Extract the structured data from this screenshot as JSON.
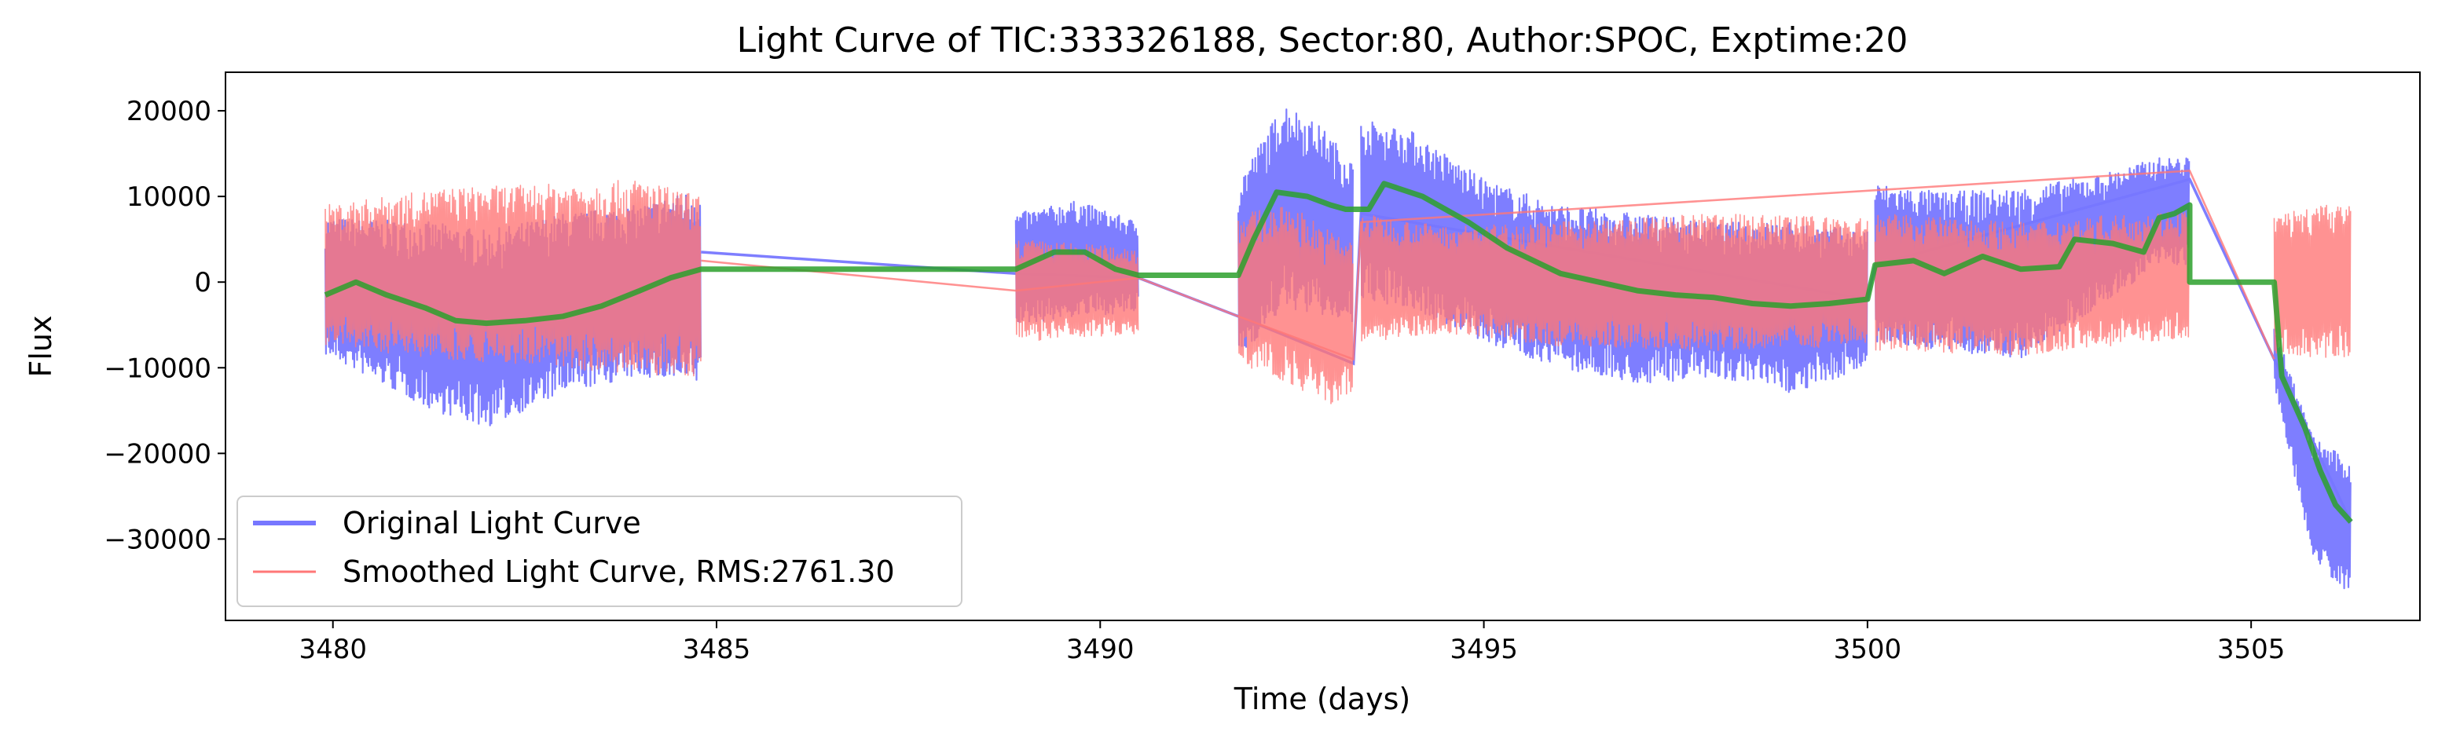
{
  "chart_data": {
    "type": "line",
    "title": "Light Curve of TIC:333326188, Sector:80, Author:SPOC, Exptime:20",
    "xlabel": "Time (days)",
    "ylabel": "Flux",
    "xlim": [
      3478.6,
      3507.2
    ],
    "ylim": [
      -39500,
      24500
    ],
    "xticks": [
      3480,
      3485,
      3490,
      3495,
      3500,
      3505
    ],
    "yticks": [
      -30000,
      -20000,
      -10000,
      0,
      10000,
      20000
    ],
    "xtick_labels": [
      "3480",
      "3485",
      "3490",
      "3495",
      "3500",
      "3505"
    ],
    "ytick_labels": [
      "−30000",
      "−20000",
      "−10000",
      "0",
      "10000",
      "20000"
    ],
    "grid": false,
    "legend_position": "lower-left",
    "segments": [
      {
        "x0": 3479.9,
        "x1": 3484.8
      },
      {
        "x0": 3488.9,
        "x1": 3490.5
      },
      {
        "x0": 3491.8,
        "x1": 3493.3
      },
      {
        "x0": 3493.4,
        "x1": 3500.0
      },
      {
        "x0": 3500.1,
        "x1": 3504.2
      },
      {
        "x0": 3505.3,
        "x1": 3506.3
      }
    ],
    "series": [
      {
        "name": "Original Light Curve",
        "color": "#7777ff",
        "style": "band",
        "envelope": [
          {
            "x": 3479.9,
            "lo": -8500,
            "hi": 7500
          },
          {
            "x": 3481.3,
            "lo": -15000,
            "hi": 7000
          },
          {
            "x": 3482.0,
            "lo": -17000,
            "hi": 6000
          },
          {
            "x": 3483.0,
            "lo": -13000,
            "hi": 8000
          },
          {
            "x": 3484.0,
            "lo": -11000,
            "hi": 9000
          },
          {
            "x": 3484.8,
            "lo": -12000,
            "hi": 11000
          },
          {
            "x": 3488.9,
            "lo": -5000,
            "hi": 8000
          },
          {
            "x": 3489.7,
            "lo": -4000,
            "hi": 9500
          },
          {
            "x": 3490.5,
            "lo": -3500,
            "hi": 7000
          },
          {
            "x": 3491.8,
            "lo": -9000,
            "hi": 12000
          },
          {
            "x": 3492.4,
            "lo": -3000,
            "hi": 21000
          },
          {
            "x": 3492.9,
            "lo": -4000,
            "hi": 18000
          },
          {
            "x": 3493.3,
            "lo": -5000,
            "hi": 14000
          },
          {
            "x": 3493.4,
            "lo": -2000,
            "hi": 19000
          },
          {
            "x": 3494.0,
            "lo": -3000,
            "hi": 18000
          },
          {
            "x": 3495.0,
            "lo": -7000,
            "hi": 12000
          },
          {
            "x": 3496.0,
            "lo": -10000,
            "hi": 9000
          },
          {
            "x": 3497.0,
            "lo": -12000,
            "hi": 8000
          },
          {
            "x": 3498.0,
            "lo": -11000,
            "hi": 7000
          },
          {
            "x": 3499.0,
            "lo": -13000,
            "hi": 7000
          },
          {
            "x": 3500.0,
            "lo": -10000,
            "hi": 6000
          },
          {
            "x": 3500.1,
            "lo": -7000,
            "hi": 11500
          },
          {
            "x": 3501.0,
            "lo": -8000,
            "hi": 10500
          },
          {
            "x": 3502.0,
            "lo": -9000,
            "hi": 11000
          },
          {
            "x": 3503.0,
            "lo": -3000,
            "hi": 12500
          },
          {
            "x": 3503.8,
            "lo": 2000,
            "hi": 14500
          },
          {
            "x": 3504.2,
            "lo": 2000,
            "hi": 14500
          },
          {
            "x": 3505.3,
            "lo": -12000,
            "hi": -5000
          },
          {
            "x": 3505.8,
            "lo": -32000,
            "hi": -18000
          },
          {
            "x": 3506.3,
            "lo": -37000,
            "hi": -21000
          }
        ],
        "trend": [
          {
            "x": 3484.8,
            "y": 3500
          },
          {
            "x": 3488.9,
            "y": 1000
          },
          {
            "x": 3490.5,
            "y": 500
          },
          {
            "x": 3491.8,
            "y": -4000
          },
          {
            "x": 3493.3,
            "y": -9500
          },
          {
            "x": 3493.4,
            "y": 8000
          },
          {
            "x": 3500.0,
            "y": -2000
          },
          {
            "x": 3500.1,
            "y": 2000
          },
          {
            "x": 3504.2,
            "y": 12000
          },
          {
            "x": 3505.3,
            "y": -9000
          },
          {
            "x": 3506.3,
            "y": -28000
          }
        ]
      },
      {
        "name": "Smoothed Light Curve, RMS:2761.30",
        "color": "#ff7777",
        "style": "band",
        "envelope": [
          {
            "x": 3479.9,
            "lo": -7500,
            "hi": 9000
          },
          {
            "x": 3481.5,
            "lo": -9000,
            "hi": 11000
          },
          {
            "x": 3483.0,
            "lo": -10000,
            "hi": 11500
          },
          {
            "x": 3484.0,
            "lo": -11000,
            "hi": 12000
          },
          {
            "x": 3484.8,
            "lo": -11000,
            "hi": 10000
          },
          {
            "x": 3488.9,
            "lo": -7000,
            "hi": 5000
          },
          {
            "x": 3490.5,
            "lo": -6000,
            "hi": 4000
          },
          {
            "x": 3491.8,
            "lo": -9500,
            "hi": 8000
          },
          {
            "x": 3492.5,
            "lo": -12000,
            "hi": 9000
          },
          {
            "x": 3493.0,
            "lo": -14500,
            "hi": 6000
          },
          {
            "x": 3493.3,
            "lo": -13000,
            "hi": 5000
          },
          {
            "x": 3493.4,
            "lo": -7000,
            "hi": 8000
          },
          {
            "x": 3494.5,
            "lo": -6000,
            "hi": 6500
          },
          {
            "x": 3496.0,
            "lo": -7500,
            "hi": 7000
          },
          {
            "x": 3498.0,
            "lo": -8000,
            "hi": 8000
          },
          {
            "x": 3500.0,
            "lo": -7500,
            "hi": 7500
          },
          {
            "x": 3500.1,
            "lo": -8000,
            "hi": 8000
          },
          {
            "x": 3502.0,
            "lo": -8500,
            "hi": 7000
          },
          {
            "x": 3504.2,
            "lo": -6500,
            "hi": 8500
          },
          {
            "x": 3505.3,
            "lo": -8500,
            "hi": 8000
          },
          {
            "x": 3506.3,
            "lo": -9000,
            "hi": 9500
          }
        ],
        "trend": [
          {
            "x": 3484.8,
            "y": 2500
          },
          {
            "x": 3488.9,
            "y": -1000
          },
          {
            "x": 3490.5,
            "y": 500
          },
          {
            "x": 3491.8,
            "y": -4000
          },
          {
            "x": 3493.3,
            "y": -9000
          },
          {
            "x": 3493.4,
            "y": 7000
          },
          {
            "x": 3504.2,
            "y": 13000
          },
          {
            "x": 3505.3,
            "y": -9000
          }
        ]
      },
      {
        "name": "",
        "color": "#2ca02c",
        "style": "line",
        "points": [
          {
            "x": 3479.9,
            "y": -1500
          },
          {
            "x": 3480.3,
            "y": 0
          },
          {
            "x": 3480.7,
            "y": -1500
          },
          {
            "x": 3481.2,
            "y": -3000
          },
          {
            "x": 3481.6,
            "y": -4500
          },
          {
            "x": 3482.0,
            "y": -4800
          },
          {
            "x": 3482.5,
            "y": -4500
          },
          {
            "x": 3483.0,
            "y": -4000
          },
          {
            "x": 3483.5,
            "y": -2800
          },
          {
            "x": 3484.0,
            "y": -1000
          },
          {
            "x": 3484.4,
            "y": 500
          },
          {
            "x": 3484.8,
            "y": 1500
          },
          {
            "x": 3488.9,
            "y": 1500
          },
          {
            "x": 3489.4,
            "y": 3500
          },
          {
            "x": 3489.8,
            "y": 3500
          },
          {
            "x": 3490.2,
            "y": 1500
          },
          {
            "x": 3490.5,
            "y": 800
          },
          {
            "x": 3491.8,
            "y": 800
          },
          {
            "x": 3492.0,
            "y": 5000
          },
          {
            "x": 3492.3,
            "y": 10500
          },
          {
            "x": 3492.7,
            "y": 10000
          },
          {
            "x": 3493.0,
            "y": 9000
          },
          {
            "x": 3493.2,
            "y": 8500
          },
          {
            "x": 3493.5,
            "y": 8500
          },
          {
            "x": 3493.7,
            "y": 11500
          },
          {
            "x": 3494.2,
            "y": 10000
          },
          {
            "x": 3494.8,
            "y": 7000
          },
          {
            "x": 3495.3,
            "y": 4000
          },
          {
            "x": 3496.0,
            "y": 1000
          },
          {
            "x": 3496.5,
            "y": 0
          },
          {
            "x": 3497.0,
            "y": -1000
          },
          {
            "x": 3497.5,
            "y": -1500
          },
          {
            "x": 3498.0,
            "y": -1800
          },
          {
            "x": 3498.5,
            "y": -2500
          },
          {
            "x": 3499.0,
            "y": -2800
          },
          {
            "x": 3499.5,
            "y": -2500
          },
          {
            "x": 3500.0,
            "y": -2000
          },
          {
            "x": 3500.1,
            "y": 2000
          },
          {
            "x": 3500.6,
            "y": 2500
          },
          {
            "x": 3501.0,
            "y": 1000
          },
          {
            "x": 3501.5,
            "y": 3000
          },
          {
            "x": 3502.0,
            "y": 1500
          },
          {
            "x": 3502.5,
            "y": 1800
          },
          {
            "x": 3502.7,
            "y": 5000
          },
          {
            "x": 3503.2,
            "y": 4500
          },
          {
            "x": 3503.6,
            "y": 3500
          },
          {
            "x": 3503.8,
            "y": 7500
          },
          {
            "x": 3504.0,
            "y": 8000
          },
          {
            "x": 3504.2,
            "y": 9000
          },
          {
            "x": 3504.2,
            "y": 0
          },
          {
            "x": 3505.3,
            "y": 0
          },
          {
            "x": 3505.4,
            "y": -11000
          },
          {
            "x": 3505.7,
            "y": -17000
          },
          {
            "x": 3505.9,
            "y": -22000
          },
          {
            "x": 3506.1,
            "y": -26000
          },
          {
            "x": 3506.3,
            "y": -28000
          }
        ]
      }
    ]
  }
}
